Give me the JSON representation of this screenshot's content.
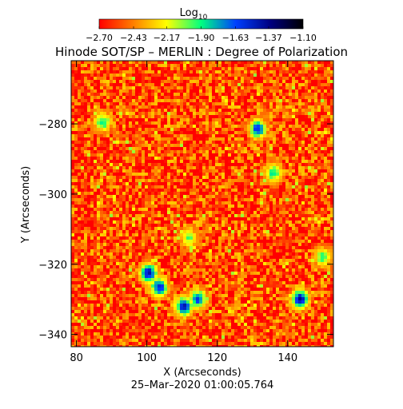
{
  "chart_data": {
    "type": "heatmap",
    "title": "Hinode SOT/SP – MERLIN : Degree of Polarization",
    "xlabel": "X (Arcseconds)",
    "ylabel": "Y (Arcseconds)",
    "footer": "25–Mar–2020 01:00:05.764",
    "xlim": [
      78.5,
      153.0
    ],
    "ylim": [
      -343.5,
      -262.0
    ],
    "x_ticks": [
      80,
      100,
      120,
      140
    ],
    "y_ticks": [
      -280,
      -300,
      -320,
      -340
    ],
    "x_tick_labels": [
      "80",
      "100",
      "120",
      "140"
    ],
    "y_tick_labels": [
      "−280",
      "−300",
      "−320",
      "−340"
    ],
    "colorbar": {
      "title_main": "Log",
      "title_sub": "10",
      "range": [
        -2.7,
        -1.1
      ],
      "tick_values": [
        -2.7,
        -2.43,
        -2.17,
        -1.9,
        -1.63,
        -1.37,
        -1.1
      ],
      "tick_labels": [
        "−2.70",
        "−2.43",
        "−2.17",
        "−1.90",
        "−1.63",
        "−1.37",
        "−1.10"
      ],
      "colors": [
        "#ff0000",
        "#ff8000",
        "#ffff00",
        "#00ff80",
        "#0040ff",
        "#000080",
        "#000000"
      ]
    },
    "background_level": -2.55,
    "features": [
      {
        "x": 100.5,
        "y": -322.5,
        "level": -1.4
      },
      {
        "x": 103.5,
        "y": -326.5,
        "level": -1.5
      },
      {
        "x": 110.5,
        "y": -332.0,
        "level": -1.45
      },
      {
        "x": 114.5,
        "y": -330.0,
        "level": -1.6
      },
      {
        "x": 143.5,
        "y": -330.0,
        "level": -1.4
      },
      {
        "x": 131.5,
        "y": -281.5,
        "level": -1.55
      },
      {
        "x": 136.0,
        "y": -294.0,
        "level": -1.85
      },
      {
        "x": 87.5,
        "y": -279.5,
        "level": -1.85
      },
      {
        "x": 112.0,
        "y": -312.5,
        "level": -2.0
      },
      {
        "x": 150.0,
        "y": -318.0,
        "level": -1.9
      }
    ]
  }
}
